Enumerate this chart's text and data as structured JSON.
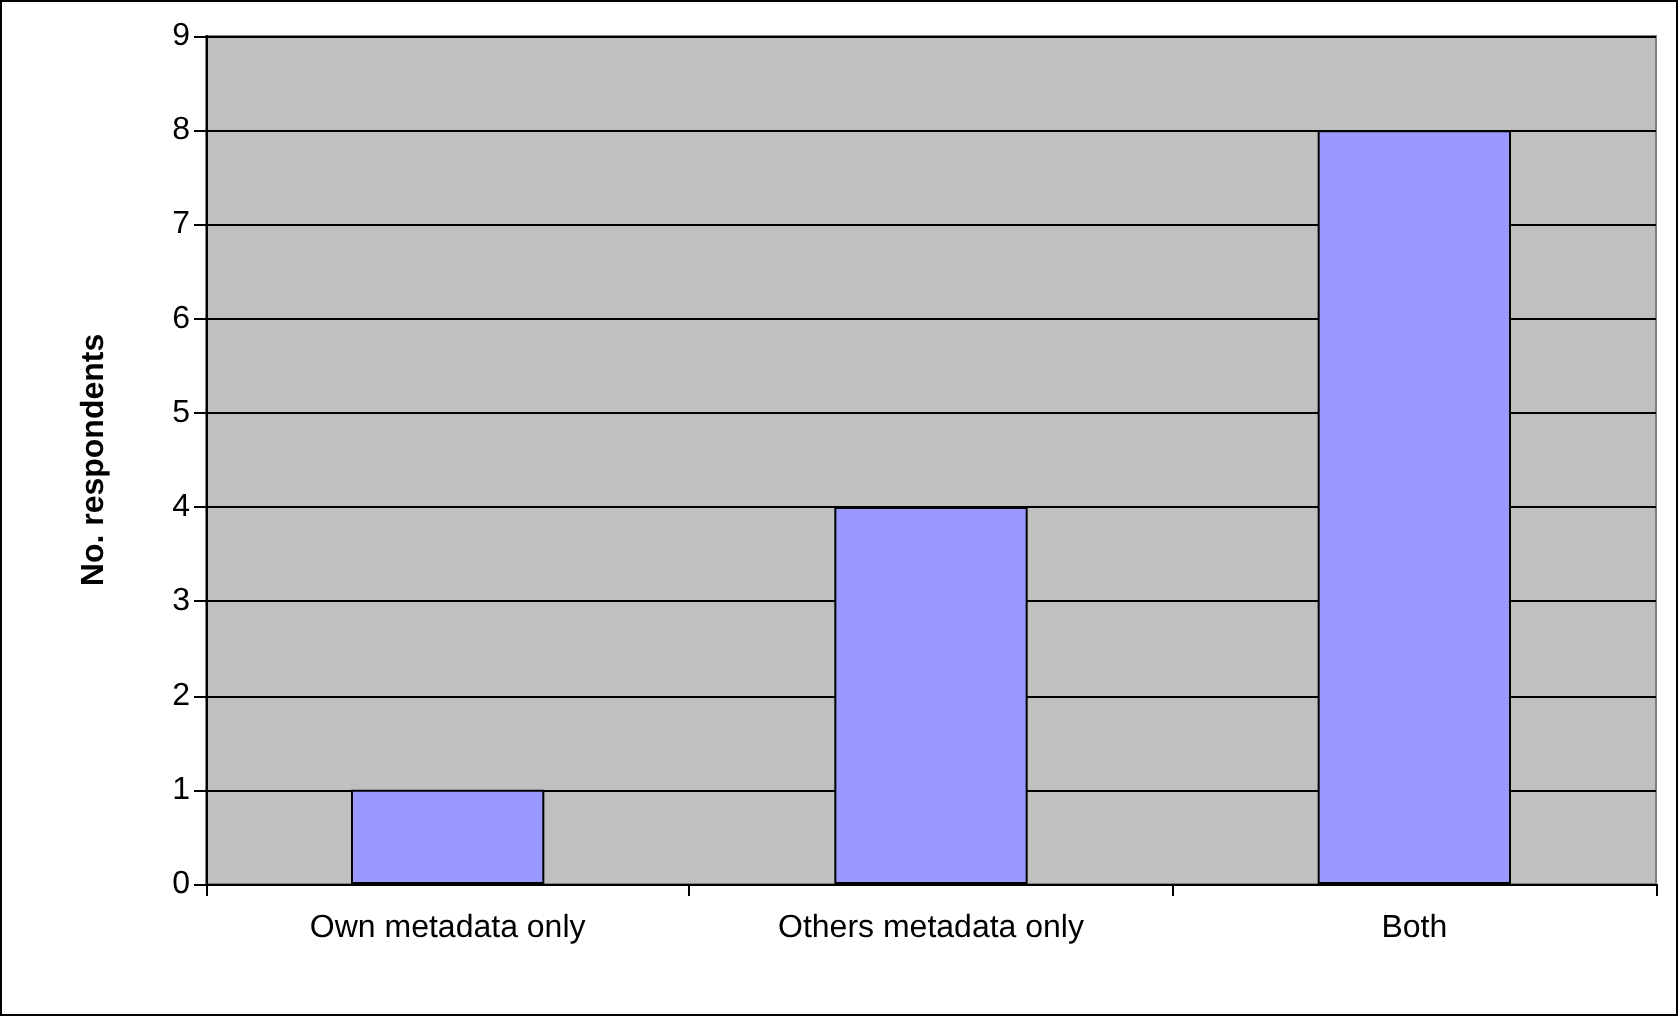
{
  "chart_data": {
    "type": "bar",
    "ylabel": "No. respondents",
    "categories": [
      "Own metadata only",
      "Others metadata only",
      "Both"
    ],
    "values": [
      1,
      4,
      8
    ],
    "color": "#9999ff",
    "ylim": [
      0,
      9
    ],
    "yticks": [
      0,
      1,
      2,
      3,
      4,
      5,
      6,
      7,
      8,
      9
    ],
    "grid": "y"
  }
}
